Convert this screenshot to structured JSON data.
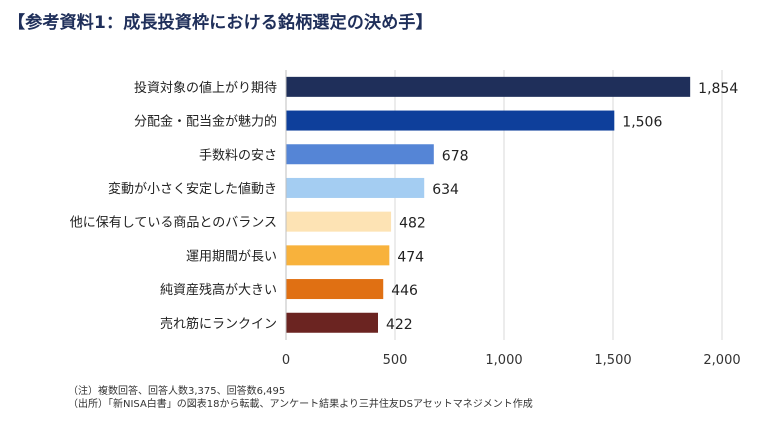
{
  "title": "【参考資料1：成長投資枠における銘柄選定の決め手】",
  "chart_data": {
    "type": "bar",
    "orientation": "horizontal",
    "categories": [
      "投資対象の値上がり期待",
      "分配金・配当金が魅力的",
      "手数料の安さ",
      "変動が小さく安定した値動き",
      "他に保有している商品とのバランス",
      "運用期間が長い",
      "純資産残高が大きい",
      "売れ筋にランクイン"
    ],
    "values": [
      1854,
      1506,
      678,
      634,
      482,
      474,
      446,
      422
    ],
    "value_labels": [
      "1,854",
      "1,506",
      "678",
      "634",
      "482",
      "474",
      "446",
      "422"
    ],
    "colors": [
      "#1f2f5a",
      "#0e3f9b",
      "#5585d6",
      "#a4cdf2",
      "#fde3b4",
      "#f8b23c",
      "#e07013",
      "#6b2421"
    ],
    "xlim": [
      0,
      2000
    ],
    "xticks": [
      0,
      500,
      1000,
      1500,
      2000
    ],
    "xtick_labels": [
      "0",
      "500",
      "1,000",
      "1,500",
      "2,000"
    ],
    "grid": "vertical",
    "xlabel": "",
    "ylabel": ""
  },
  "notes": [
    "（注）複数回答、回答人数3,375、回答数6,495",
    "（出所）「新NISA白書」の図表18から転載、アンケート結果より三井住友DSアセットマネジメント作成"
  ]
}
